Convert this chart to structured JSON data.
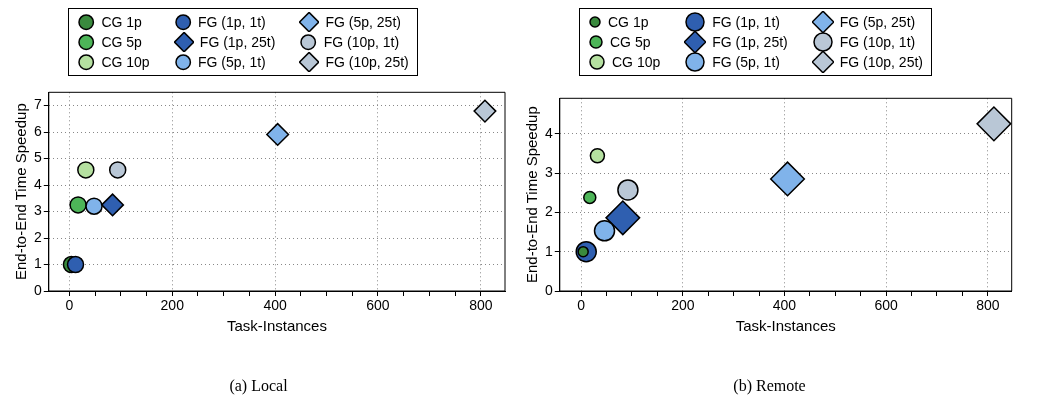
{
  "chart_data": [
    {
      "type": "scatter",
      "title": "(a) Local",
      "xlabel": "Task-Instances",
      "ylabel": "End-to-End Time Speedup",
      "xlim": [
        -40,
        847
      ],
      "ylim": [
        0,
        7.5
      ],
      "xticks": [
        0,
        {
          "value": 50,
          "label": null
        },
        {
          "value": 100,
          "label": null
        },
        {
          "value": 150,
          "label": null
        },
        200,
        {
          "value": 250,
          "label": null
        },
        {
          "value": 300,
          "label": null
        },
        {
          "value": 350,
          "label": null
        },
        400,
        {
          "value": 450,
          "label": null
        },
        {
          "value": 500,
          "label": null
        },
        {
          "value": 550,
          "label": null
        },
        600,
        {
          "value": 650,
          "label": null
        },
        {
          "value": 700,
          "label": null
        },
        {
          "value": 750,
          "label": null
        },
        800
      ],
      "yticks": [
        0,
        1,
        2,
        3,
        4,
        5,
        6,
        7
      ],
      "grid": true,
      "legend": "top",
      "series": [
        {
          "name": "CG 1p",
          "color": "#3a8a3e",
          "marker": "circle",
          "x": [
            4
          ],
          "values": [
            1.0
          ]
        },
        {
          "name": "CG 5p",
          "color": "#4db558",
          "marker": "circle",
          "x": [
            17
          ],
          "values": [
            3.25
          ]
        },
        {
          "name": "CG 10p",
          "color": "#b5e0a0",
          "marker": "circle",
          "x": [
            32
          ],
          "values": [
            4.57
          ]
        },
        {
          "name": "FG (1p, 1t)",
          "color": "#2f5fb0",
          "marker": "circle",
          "x": [
            12
          ],
          "values": [
            1.0
          ]
        },
        {
          "name": "FG (1p, 25t)",
          "color": "#2f5fb0",
          "marker": "diamond",
          "x": [
            84
          ],
          "values": [
            3.25
          ]
        },
        {
          "name": "FG (5p, 1t)",
          "color": "#80b3ea",
          "marker": "circle",
          "x": [
            48
          ],
          "values": [
            3.2
          ]
        },
        {
          "name": "FG (5p, 25t)",
          "color": "#80b3ea",
          "marker": "diamond",
          "x": [
            405
          ],
          "values": [
            5.91
          ]
        },
        {
          "name": "FG (10p, 1t)",
          "color": "#b9c7d6",
          "marker": "circle",
          "x": [
            94
          ],
          "values": [
            4.57
          ]
        },
        {
          "name": "FG (10p, 25t)",
          "color": "#b9c7d6",
          "marker": "diamond",
          "x": [
            808
          ],
          "values": [
            6.79
          ]
        }
      ]
    },
    {
      "type": "scatter",
      "title": "(b) Remote",
      "xlabel": "Task-Instances",
      "ylabel": "End-to-End Time Speedup",
      "xlim": [
        -42,
        847
      ],
      "ylim": [
        0,
        4.9
      ],
      "xticks": [
        0,
        {
          "value": 50,
          "label": null
        },
        {
          "value": 100,
          "label": null
        },
        {
          "value": 150,
          "label": null
        },
        200,
        {
          "value": 250,
          "label": null
        },
        {
          "value": 300,
          "label": null
        },
        {
          "value": 350,
          "label": null
        },
        400,
        {
          "value": 450,
          "label": null
        },
        {
          "value": 500,
          "label": null
        },
        {
          "value": 550,
          "label": null
        },
        600,
        {
          "value": 650,
          "label": null
        },
        {
          "value": 700,
          "label": null
        },
        {
          "value": 750,
          "label": null
        },
        800
      ],
      "yticks": [
        0,
        1,
        2,
        3,
        4
      ],
      "grid": true,
      "legend": "top",
      "series": [
        {
          "name": "CG 1p",
          "color": "#3a8a3e",
          "marker": "circle",
          "x": [
            4
          ],
          "values": [
            1.0
          ]
        },
        {
          "name": "CG 5p",
          "color": "#4db558",
          "marker": "circle",
          "x": [
            17
          ],
          "values": [
            2.38
          ]
        },
        {
          "name": "CG 10p",
          "color": "#b5e0a0",
          "marker": "circle",
          "x": [
            32
          ],
          "values": [
            3.44
          ]
        },
        {
          "name": "FG (1p, 1t)",
          "color": "#2f5fb0",
          "marker": "circle",
          "x": [
            10
          ],
          "values": [
            1.0
          ]
        },
        {
          "name": "FG (1p, 25t)",
          "color": "#2f5fb0",
          "marker": "diamond",
          "x": [
            82
          ],
          "values": [
            1.86
          ]
        },
        {
          "name": "FG (5p, 1t)",
          "color": "#80b3ea",
          "marker": "circle",
          "x": [
            46
          ],
          "values": [
            1.53
          ]
        },
        {
          "name": "FG (5p, 25t)",
          "color": "#80b3ea",
          "marker": "diamond",
          "x": [
            406
          ],
          "values": [
            2.85
          ]
        },
        {
          "name": "FG (10p, 1t)",
          "color": "#b9c7d6",
          "marker": "circle",
          "x": [
            92
          ],
          "values": [
            2.57
          ]
        },
        {
          "name": "FG (10p, 25t)",
          "color": "#b9c7d6",
          "marker": "diamond",
          "x": [
            812
          ],
          "values": [
            4.25
          ]
        }
      ]
    }
  ]
}
